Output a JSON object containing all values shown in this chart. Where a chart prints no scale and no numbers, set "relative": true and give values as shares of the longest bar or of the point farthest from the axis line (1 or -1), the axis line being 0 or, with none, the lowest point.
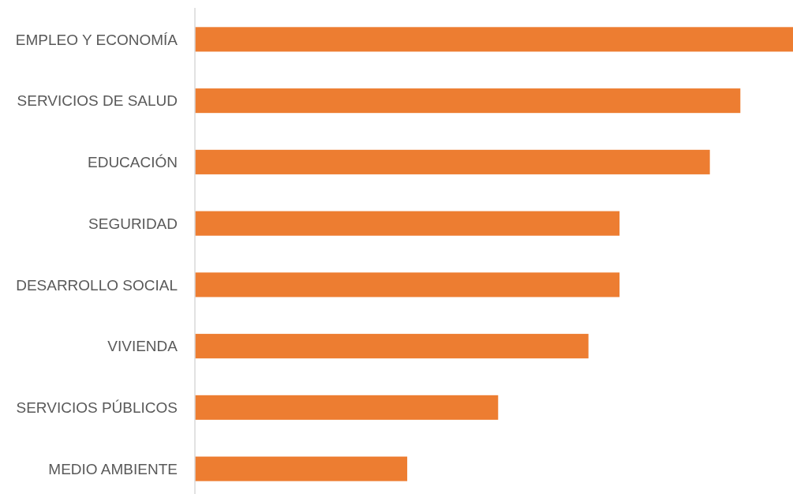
{
  "chart_data": {
    "type": "bar",
    "orientation": "horizontal",
    "relative": true,
    "categories": [
      "EMPLEO Y ECONOMÍA",
      "SERVICIOS DE SALUD",
      "EDUCACIÓN",
      "SEGURIDAD",
      "DESARROLLO SOCIAL",
      "VIVIENDA",
      "SERVICIOS PÚBLICOS",
      "MEDIO AMBIENTE"
    ],
    "values": [
      1,
      0.912,
      0.861,
      0.71,
      0.71,
      0.658,
      0.507,
      0.355
    ],
    "color": "#ed7d31"
  }
}
